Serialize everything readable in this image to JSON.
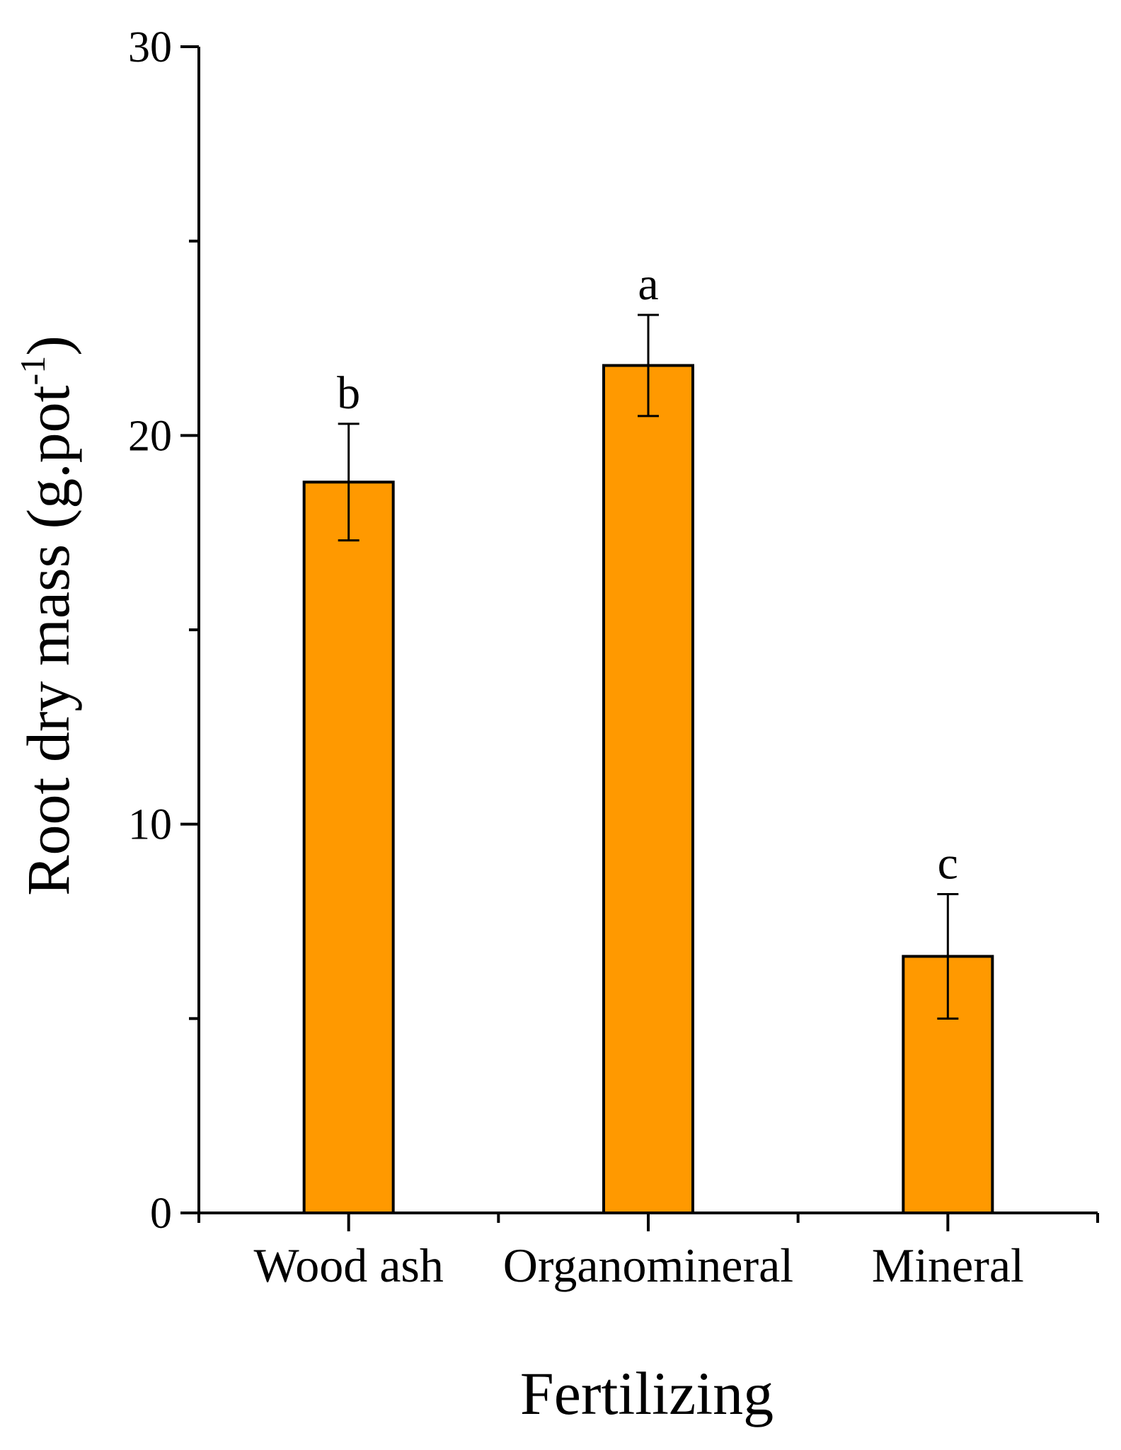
{
  "chart_data": {
    "type": "bar",
    "title": "",
    "xlabel": "Fertilizing",
    "ylabel_main": "Root dry mass (g.pot",
    "ylabel_sup": "-1",
    "ylabel_close": ")",
    "ylim": [
      0,
      30
    ],
    "yticks": [
      0,
      10,
      20,
      30
    ],
    "yminor": [
      5,
      15,
      25
    ],
    "categories": [
      "Wood ash",
      "Organomineral",
      "Mineral"
    ],
    "values": [
      18.8,
      21.8,
      6.6
    ],
    "error_upper": [
      20.3,
      23.1,
      8.2
    ],
    "error_lower": [
      17.3,
      20.5,
      5.0
    ],
    "significance": [
      "b",
      "a",
      "c"
    ],
    "bar_color": "#FF9900",
    "grid": false
  }
}
